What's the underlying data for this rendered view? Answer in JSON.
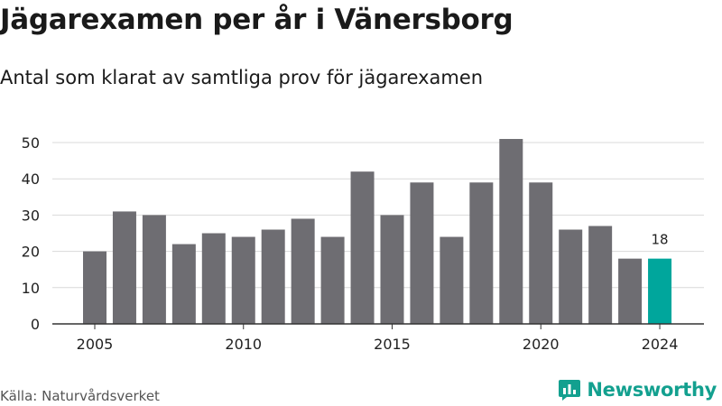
{
  "header": {
    "title": "Jägarexamen per år i Vänersborg",
    "subtitle": "Antal som klarat av samtliga prov för jägarexamen"
  },
  "footer": {
    "source": "Källa: Naturvårdsverket",
    "brand": "Newsworthy",
    "brand_icon": "newsworthy-logo-icon"
  },
  "colors": {
    "bar": "#6e6d72",
    "highlight": "#00a69c",
    "grid": "#d9d9d9",
    "axis": "#333333",
    "brand": "#13a08f"
  },
  "chart_data": {
    "type": "bar",
    "title": "Jägarexamen per år i Vänersborg",
    "subtitle": "Antal som klarat av samtliga prov för jägarexamen",
    "categories": [
      2005,
      2006,
      2007,
      2008,
      2009,
      2010,
      2011,
      2012,
      2013,
      2014,
      2015,
      2016,
      2017,
      2018,
      2019,
      2020,
      2021,
      2022,
      2023,
      2024
    ],
    "values": [
      20,
      31,
      30,
      22,
      25,
      24,
      26,
      29,
      24,
      42,
      30,
      39,
      24,
      39,
      51,
      39,
      26,
      27,
      18,
      18
    ],
    "x_tick_labels": [
      "2005",
      "2010",
      "2015",
      "2020",
      "2024"
    ],
    "y_ticks": [
      0,
      10,
      20,
      30,
      40,
      50
    ],
    "ylim": [
      0,
      52
    ],
    "highlight_category": 2024,
    "data_labels": [
      {
        "category": 2024,
        "text": "18"
      }
    ],
    "grid": true,
    "legend": "none"
  }
}
